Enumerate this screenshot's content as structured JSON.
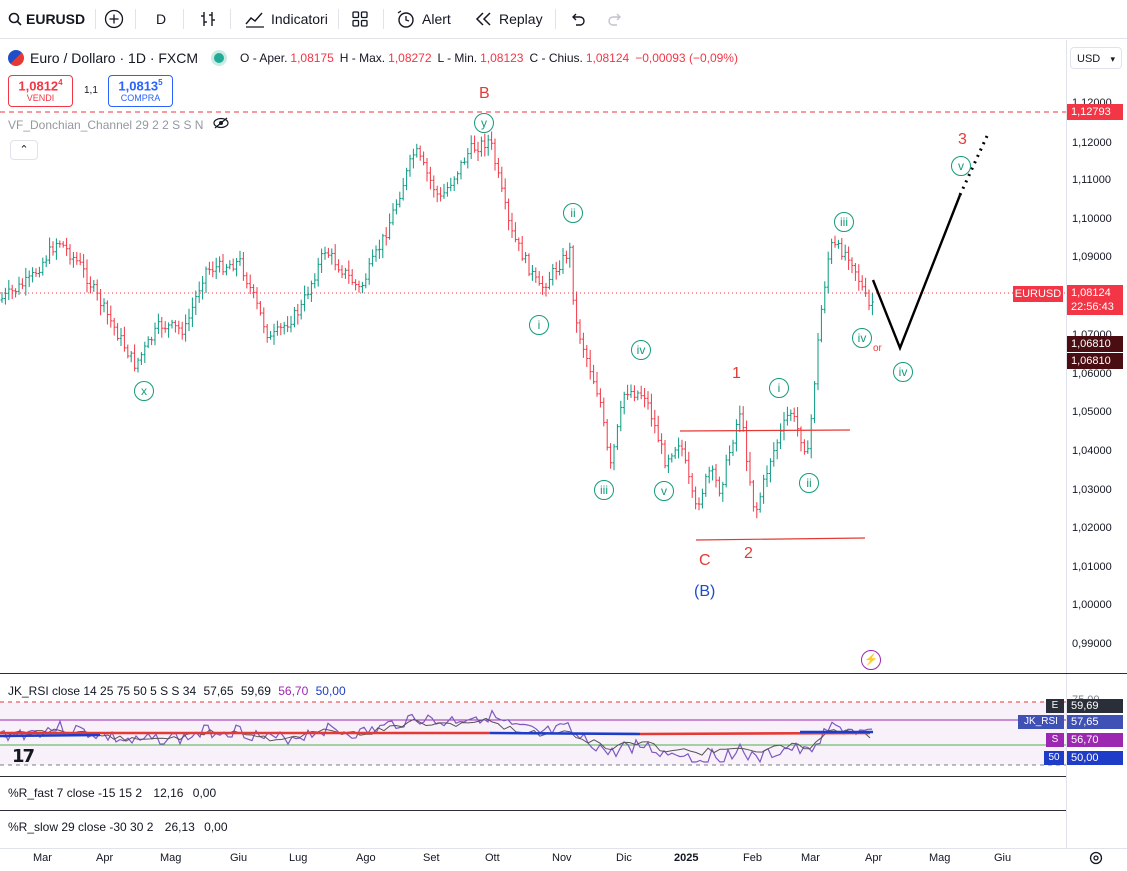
{
  "toolbar": {
    "symbol": "EURUSD",
    "interval": "D",
    "indicators_label": "Indicatori",
    "alert_label": "Alert",
    "replay_label": "Replay"
  },
  "legend": {
    "title": "Euro / Dollaro · 1D · FXCM",
    "open_label": "O - Aper.",
    "open_value": "1,08175",
    "high_label": "H - Max.",
    "high_value": "1,08272",
    "low_label": "L - Min.",
    "low_value": "1,08123",
    "close_label": "C - Chius.",
    "close_value": "1,08124",
    "change_value": "−0,00093 (−0,09%)"
  },
  "trade": {
    "sell_price": "1,0812",
    "sell_sup": "4",
    "sell_label": "VENDI",
    "spread": "1,1",
    "buy_price": "1,0813",
    "buy_sup": "5",
    "buy_label": "COMPRA"
  },
  "indicator_label": "VF_Donchian_Channel 29 2 2 S S N",
  "price_axis": {
    "currency": "USD",
    "ticks": [
      "1,12000",
      "1,11000",
      "1,10000",
      "1,09000",
      "1,07000",
      "1,06000",
      "1,05000",
      "1,04000",
      "1,03000",
      "1,02000",
      "1,01000",
      "1,00000",
      "0,99000"
    ],
    "level_top": "1,12793",
    "symbol_tag": "EURUSD",
    "last_price": "1,08124",
    "countdown": "22:56:43",
    "level_a": "1,06810",
    "level_b": "1,06810"
  },
  "waves": {
    "B": "B",
    "y": "y",
    "x": "x",
    "ii_1": "ii",
    "i_1": "i",
    "iv_1": "iv",
    "iii_1": "iii",
    "v_1": "v",
    "C": "C",
    "B_paren": "(B)",
    "one": "1",
    "two": "2",
    "i_2": "i",
    "ii_2": "ii",
    "iii_2": "iii",
    "iv_2": "iv",
    "or": "or",
    "iv_3": "iv",
    "three": "3",
    "v_2": "v"
  },
  "rsi": {
    "legend_name": "JK_RSI close 14 25 75 50 5 S S 34",
    "v1": "57,65",
    "v2": "59,69",
    "v3": "56,70",
    "v4": "50,00",
    "axis_top": "75,00",
    "tag_e": "E",
    "tag_e_val": "59,69",
    "tag_name": "JK_RSI",
    "tag_name_val": "57,65",
    "tag_s": "S",
    "tag_s_val": "56,70",
    "tag_50": "50",
    "tag_50_val": "50,00",
    "colors": {
      "upper": "#9c27b0",
      "lower_band": "#4caf50",
      "red": "#e53935",
      "blue": "#1e3cc8"
    }
  },
  "rfast": {
    "legend": "%R_fast 7 close -15 15 2",
    "v1": "12,16",
    "v2": "0,00"
  },
  "rslow": {
    "legend": "%R_slow 29 close -30 30 2",
    "v1": "26,13",
    "v2": "0,00"
  },
  "time_axis": [
    "Mar",
    "Apr",
    "Mag",
    "Giu",
    "Lug",
    "Ago",
    "Set",
    "Ott",
    "Nov",
    "Dic",
    "2025",
    "Feb",
    "Mar",
    "Apr",
    "Mag",
    "Giu"
  ],
  "colors": {
    "up": "#089981",
    "down": "#f23645",
    "wave_green": "#149b7a",
    "wave_red": "#e53935",
    "wave_blue": "#1e4ec8"
  }
}
